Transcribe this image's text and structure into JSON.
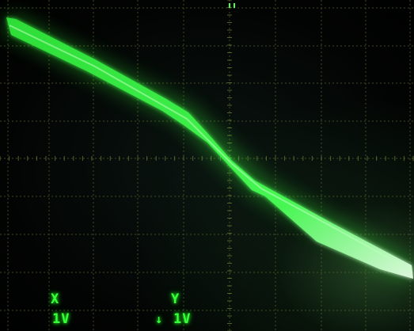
{
  "screen": {
    "trace_color": "#39ff3c",
    "grid_color": "#6e7a3a"
  },
  "channels": {
    "x": {
      "label": "X",
      "scale": "1V"
    },
    "y": {
      "label": "Y",
      "arrow": "↓",
      "scale": "1V"
    }
  }
}
